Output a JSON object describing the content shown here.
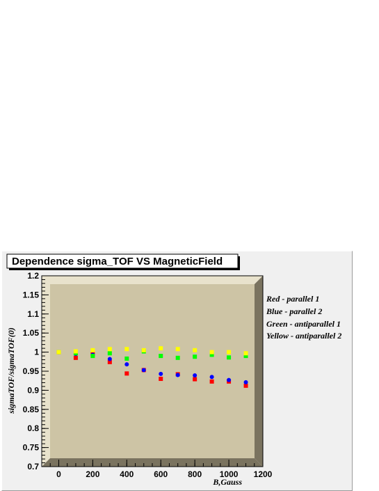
{
  "chart_data": {
    "type": "scatter",
    "title": "Dependence sigma_TOF VS MagneticField",
    "xlabel": "B,Gauss",
    "ylabel": "sigmaTOF/sigmaTOF(0)",
    "xlim": [
      -100,
      1200
    ],
    "ylim": [
      0.7,
      1.2
    ],
    "xticks": [
      0,
      200,
      400,
      600,
      800,
      1000,
      1200
    ],
    "xtick_labels": [
      "0",
      "200",
      "400",
      "600",
      "800",
      "1000",
      "1200"
    ],
    "yticks": [
      0.7,
      0.75,
      0.8,
      0.85,
      0.9,
      0.95,
      1.0,
      1.05,
      1.1,
      1.15,
      1.2
    ],
    "ytick_labels": [
      "0.7",
      "0.75",
      "0.8",
      "0.85",
      "0.9",
      "0.95",
      "1",
      "1.05",
      "1.1",
      "1.15",
      "1.2"
    ],
    "grid": false,
    "legend_position": "right",
    "series": [
      {
        "name": "Red - parallel 1",
        "color": "#ff0000",
        "marker": "square",
        "x": [
          0,
          100,
          200,
          300,
          400,
          500,
          600,
          700,
          800,
          900,
          1000,
          1100
        ],
        "y": [
          1.0,
          0.985,
          0.995,
          0.974,
          0.944,
          0.953,
          0.93,
          0.942,
          0.929,
          0.923,
          0.923,
          0.912
        ]
      },
      {
        "name": "Blue - parallel 2",
        "color": "#0000ff",
        "marker": "circle",
        "x": [
          0,
          100,
          200,
          300,
          400,
          500,
          600,
          700,
          800,
          900,
          1000,
          1100
        ],
        "y": [
          1.0,
          0.995,
          0.993,
          0.982,
          0.968,
          0.953,
          0.943,
          0.94,
          0.939,
          0.935,
          0.927,
          0.921
        ]
      },
      {
        "name": "Green - antiparallel 1",
        "color": "#00ff00",
        "marker": "square",
        "x": [
          0,
          100,
          200,
          300,
          400,
          500,
          600,
          700,
          800,
          900,
          1000,
          1100
        ],
        "y": [
          1.0,
          0.997,
          0.99,
          0.997,
          0.983,
          1.002,
          0.99,
          0.985,
          0.988,
          0.993,
          0.986,
          0.99
        ]
      },
      {
        "name": "Yellow - antiparallel 2",
        "color": "#ffff00",
        "marker": "square",
        "x": [
          0,
          100,
          200,
          300,
          400,
          500,
          600,
          700,
          800,
          900,
          1000,
          1100
        ],
        "y": [
          1.0,
          1.002,
          1.005,
          1.008,
          1.008,
          1.005,
          1.01,
          1.008,
          1.005,
          1.0,
          1.0,
          0.997
        ]
      }
    ]
  },
  "colors": {
    "plot_background": "#cdc4a5",
    "frame_shadow": "#7a735f",
    "frame_highlight": "#e8e2cc",
    "canvas_background": "#f0f0f0"
  }
}
